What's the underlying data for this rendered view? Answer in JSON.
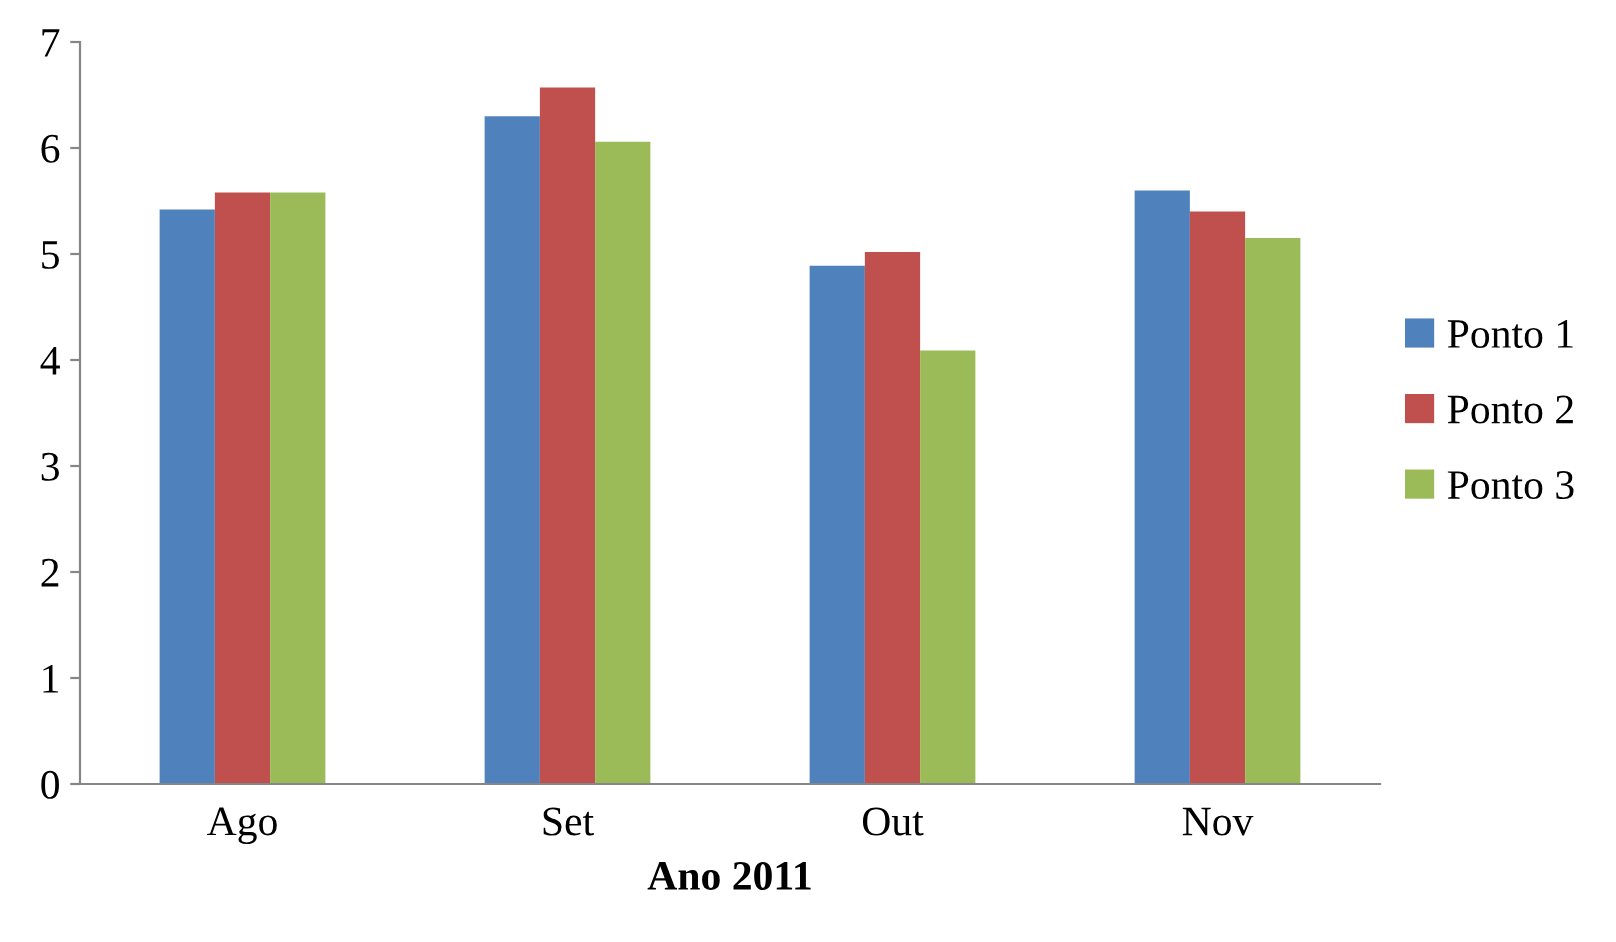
{
  "chart_data": {
    "type": "bar",
    "xlabel": "Ano 2011",
    "categories": [
      "Ago",
      "Set",
      "Out",
      "Nov"
    ],
    "series": [
      {
        "name": "Ponto 1",
        "color": "#4f81bd",
        "values": [
          5.42,
          6.3,
          4.89,
          5.6
        ]
      },
      {
        "name": "Ponto 2",
        "color": "#c0504d",
        "values": [
          5.58,
          6.57,
          5.02,
          5.4
        ]
      },
      {
        "name": "Ponto 3",
        "color": "#9bbb59",
        "values": [
          5.58,
          6.06,
          4.09,
          5.15
        ]
      }
    ],
    "ylim": [
      0,
      7
    ],
    "yticks": [
      0,
      1,
      2,
      3,
      4,
      5,
      6,
      7
    ],
    "grid": false,
    "legend": "right"
  }
}
